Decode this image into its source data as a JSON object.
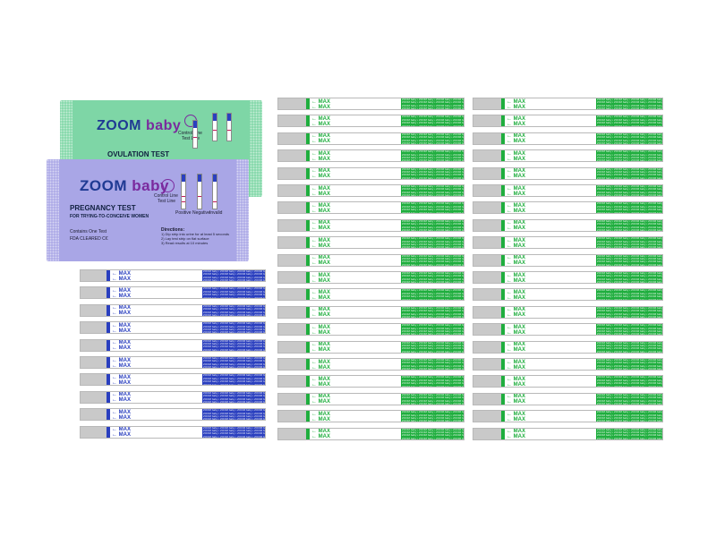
{
  "ovulation_pouch": {
    "brand_zoom": "ZOOM",
    "brand_baby": "baby",
    "title": "OVULATION TEST",
    "control_line": "Control Line",
    "test_line": "Test Line",
    "color": "#7ed6a6"
  },
  "pregnancy_pouch": {
    "brand_zoom": "ZOOM",
    "brand_baby": "baby",
    "title": "PREGNANCY TEST",
    "subtitle": "FOR TRYING-TO-CONCEIVE WOMEN",
    "contains": "Contains One Test",
    "fda": "FDA CLEARED C€",
    "control_line": "Control Line",
    "test_line": "Test Line",
    "result_labels": [
      "Positive",
      "Negative",
      "Invalid"
    ],
    "directions_title": "Directions:",
    "directions": [
      "1) Dip strip into urine for at least 5 seconds",
      "2) Lay test strip on flat surface",
      "3) Read results at 10 minutes"
    ],
    "color": "#a9a6e6"
  },
  "strips": {
    "max_label": "← MAX",
    "pad_text": "ZOOM baby • ZOOM baby • ZOOM baby • ZOOM baby",
    "blue_color": "#2a3fbf",
    "green_color": "#1fae3e",
    "blue_count": 10,
    "green_left_count": 20,
    "green_right_count": 20
  }
}
